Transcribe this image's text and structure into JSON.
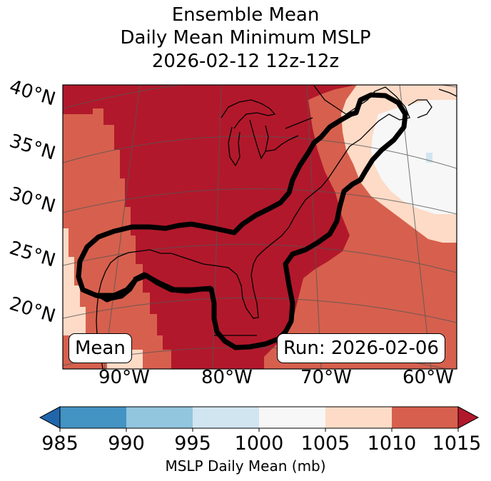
{
  "title": {
    "line1": "Ensemble Mean",
    "line2": "Daily Mean Minimum MSLP",
    "line3": "2026-02-12 12z-12z"
  },
  "map": {
    "lat_labels": [
      "40°N",
      "35°N",
      "30°N",
      "25°N",
      "20°N"
    ],
    "lon_labels": [
      "90°W",
      "80°W",
      "70°W",
      "60°W"
    ],
    "left_box": "Mean",
    "right_box": "Run: 2026-02-06"
  },
  "colorbar": {
    "ticks": [
      "985",
      "990",
      "995",
      "1000",
      "1005",
      "1010",
      "1015"
    ],
    "label": "MSLP Daily Mean (mb)",
    "colors": {
      "under": "#2166ac",
      "c985_990": "#4393c3",
      "c990_995": "#92c5de",
      "c995_1000": "#d1e5f0",
      "c1000_1005": "#f7f7f7",
      "c1005_1010": "#fddbc7",
      "c1010_1015": "#d6604d",
      "over": "#b2182b"
    }
  }
}
